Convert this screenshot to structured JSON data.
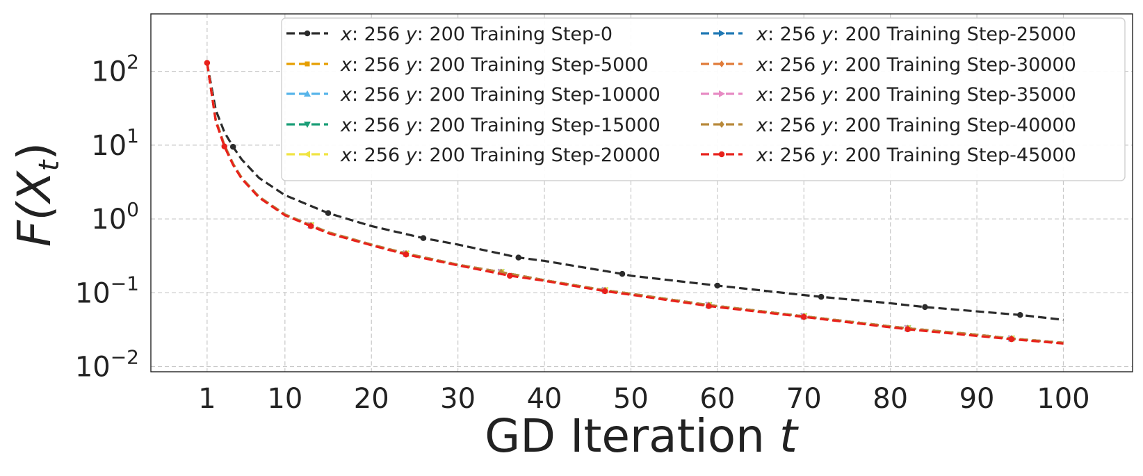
{
  "chart_data": {
    "type": "line",
    "title": "",
    "xlabel": "GD Iteration t",
    "ylabel": "F(X_t)",
    "xlabel_parts": {
      "text": "GD Iteration ",
      "var": "t"
    },
    "ylabel_parts": {
      "f": "F(X",
      "sub": "t",
      "close": ")"
    },
    "xscale": "linear",
    "yscale": "log",
    "xlim": [
      -5.5,
      108
    ],
    "ylim": [
      0.0085,
      600
    ],
    "xticks": [
      1,
      10,
      20,
      30,
      40,
      50,
      60,
      70,
      80,
      90,
      100
    ],
    "xtick_labels": [
      "1",
      "10",
      "20",
      "30",
      "40",
      "50",
      "60",
      "70",
      "80",
      "90",
      "100"
    ],
    "yticks": [
      0.01,
      0.1,
      1,
      10,
      100
    ],
    "ytick_labels": [
      {
        "base": "10",
        "exp": "−2"
      },
      {
        "base": "10",
        "exp": "−1"
      },
      {
        "base": "10",
        "exp": "0"
      },
      {
        "base": "10",
        "exp": "1"
      },
      {
        "base": "10",
        "exp": "2"
      }
    ],
    "grid": true,
    "legend_position": "top-right",
    "legend_columns": 2,
    "legend_label_parts": {
      "x_var": "x",
      "x_val": ": 256 ",
      "y_var": "y",
      "y_val": ": 200 Training Step-"
    },
    "series": [
      {
        "name": "x: 256 y: 200 Training Step-0",
        "step": "0",
        "color": "#2b2b2b",
        "marker": "circle",
        "x": [
          1,
          2,
          3,
          4,
          5,
          7,
          10,
          15,
          20,
          26,
          30,
          37,
          40,
          49,
          50,
          60,
          70,
          72,
          80,
          84,
          90,
          95,
          100
        ],
        "y": [
          130,
          30,
          15,
          9.5,
          6.4,
          3.6,
          2.1,
          1.2,
          0.8,
          0.55,
          0.45,
          0.3,
          0.27,
          0.18,
          0.17,
          0.125,
          0.093,
          0.088,
          0.072,
          0.064,
          0.056,
          0.05,
          0.043
        ],
        "marker_x": [
          4,
          15,
          26,
          37,
          49,
          60,
          72,
          84,
          95
        ]
      },
      {
        "name": "x: 256 y: 200 Training Step-5000",
        "step": "5000",
        "color": "#e69f00",
        "marker": "square",
        "x": [
          1,
          2,
          3,
          4,
          5,
          7,
          10,
          13,
          15,
          20,
          24,
          30,
          35,
          40,
          47,
          50,
          59,
          60,
          70,
          80,
          82,
          90,
          94,
          100
        ],
        "y": [
          130,
          22,
          10,
          5.6,
          3.6,
          2.0,
          1.15,
          0.82,
          0.66,
          0.45,
          0.34,
          0.24,
          0.19,
          0.148,
          0.108,
          0.097,
          0.068,
          0.066,
          0.048,
          0.035,
          0.033,
          0.027,
          0.024,
          0.021
        ],
        "marker_x": [
          13,
          24,
          35,
          47,
          59,
          70,
          82,
          94
        ]
      },
      {
        "name": "x: 256 y: 200 Training Step-10000",
        "step": "10000",
        "color": "#56b4e9",
        "marker": "triangle-up",
        "x": [
          1,
          2,
          3,
          4,
          5,
          7,
          10,
          13,
          15,
          20,
          24,
          30,
          35,
          40,
          47,
          50,
          59,
          60,
          70,
          80,
          82,
          90,
          94,
          100
        ],
        "y": [
          130,
          22,
          10,
          5.6,
          3.6,
          2.0,
          1.15,
          0.82,
          0.66,
          0.45,
          0.34,
          0.24,
          0.19,
          0.148,
          0.108,
          0.097,
          0.068,
          0.066,
          0.048,
          0.035,
          0.033,
          0.027,
          0.024,
          0.021
        ],
        "marker_x": [
          13,
          24,
          35,
          47,
          59,
          70,
          82,
          94
        ]
      },
      {
        "name": "x: 256 y: 200 Training Step-15000",
        "step": "15000",
        "color": "#1a9e77",
        "marker": "triangle-down",
        "x": [
          1,
          2,
          3,
          4,
          5,
          7,
          10,
          13,
          15,
          20,
          24,
          30,
          35,
          40,
          47,
          50,
          59,
          60,
          70,
          80,
          82,
          90,
          94,
          100
        ],
        "y": [
          130,
          22,
          10,
          5.6,
          3.6,
          2.0,
          1.15,
          0.82,
          0.66,
          0.45,
          0.34,
          0.24,
          0.19,
          0.148,
          0.108,
          0.097,
          0.068,
          0.066,
          0.048,
          0.035,
          0.033,
          0.027,
          0.024,
          0.021
        ],
        "marker_x": [
          13,
          24,
          35,
          47,
          59,
          70,
          82,
          94
        ]
      },
      {
        "name": "x: 256 y: 200 Training Step-20000",
        "step": "20000",
        "color": "#f0e442",
        "marker": "triangle-left",
        "x": [
          1,
          2,
          3,
          4,
          5,
          7,
          10,
          13,
          15,
          20,
          24,
          30,
          35,
          40,
          47,
          50,
          59,
          60,
          70,
          80,
          82,
          90,
          94,
          100
        ],
        "y": [
          130,
          22,
          10,
          5.6,
          3.6,
          2.0,
          1.15,
          0.82,
          0.66,
          0.45,
          0.34,
          0.24,
          0.19,
          0.148,
          0.108,
          0.097,
          0.068,
          0.066,
          0.048,
          0.035,
          0.033,
          0.027,
          0.024,
          0.021
        ],
        "marker_x": [
          13,
          24,
          35,
          47,
          59,
          70,
          82,
          94
        ]
      },
      {
        "name": "x: 256 y: 200 Training Step-25000",
        "step": "25000",
        "color": "#1f78b4",
        "marker": "triangle-right",
        "x": [
          1,
          2,
          3,
          4,
          5,
          7,
          10,
          13,
          15,
          20,
          24,
          30,
          35,
          40,
          47,
          50,
          59,
          60,
          70,
          80,
          82,
          90,
          94,
          100
        ],
        "y": [
          130,
          22,
          10,
          5.6,
          3.6,
          2.0,
          1.15,
          0.82,
          0.66,
          0.45,
          0.34,
          0.24,
          0.19,
          0.148,
          0.108,
          0.097,
          0.068,
          0.066,
          0.048,
          0.035,
          0.033,
          0.027,
          0.024,
          0.021
        ],
        "marker_x": [
          13,
          24,
          35,
          47,
          59,
          70,
          82,
          94
        ]
      },
      {
        "name": "x: 256 y: 200 Training Step-30000",
        "step": "30000",
        "color": "#e07b39",
        "marker": "diamond",
        "x": [
          1,
          2,
          3,
          4,
          5,
          7,
          10,
          13,
          15,
          20,
          24,
          30,
          35,
          40,
          47,
          50,
          59,
          60,
          70,
          80,
          82,
          90,
          94,
          100
        ],
        "y": [
          130,
          22,
          10,
          5.6,
          3.6,
          2.0,
          1.15,
          0.82,
          0.66,
          0.45,
          0.34,
          0.24,
          0.19,
          0.148,
          0.108,
          0.097,
          0.068,
          0.066,
          0.048,
          0.035,
          0.033,
          0.027,
          0.024,
          0.021
        ],
        "marker_x": [
          13,
          24,
          35,
          47,
          59,
          70,
          82,
          94
        ]
      },
      {
        "name": "x: 256 y: 200 Training Step-35000",
        "step": "35000",
        "color": "#e78ac3",
        "marker": "triangle-right",
        "x": [
          1,
          2,
          3,
          4,
          5,
          7,
          10,
          13,
          15,
          20,
          24,
          30,
          35,
          40,
          47,
          50,
          59,
          60,
          70,
          80,
          82,
          90,
          94,
          100
        ],
        "y": [
          130,
          22,
          10,
          5.6,
          3.6,
          2.0,
          1.15,
          0.82,
          0.66,
          0.45,
          0.34,
          0.24,
          0.19,
          0.148,
          0.108,
          0.097,
          0.068,
          0.066,
          0.048,
          0.035,
          0.033,
          0.027,
          0.024,
          0.021
        ],
        "marker_x": [
          13,
          24,
          35,
          47,
          59,
          70,
          82,
          94
        ]
      },
      {
        "name": "x: 256 y: 200 Training Step-40000",
        "step": "40000",
        "color": "#b8893a",
        "marker": "diamond",
        "x": [
          1,
          2,
          3,
          4,
          5,
          7,
          10,
          13,
          15,
          20,
          24,
          30,
          35,
          40,
          47,
          50,
          59,
          60,
          70,
          80,
          82,
          90,
          94,
          100
        ],
        "y": [
          130,
          22,
          10,
          5.6,
          3.6,
          2.0,
          1.15,
          0.82,
          0.66,
          0.45,
          0.34,
          0.24,
          0.19,
          0.148,
          0.108,
          0.097,
          0.068,
          0.066,
          0.048,
          0.035,
          0.033,
          0.027,
          0.024,
          0.021
        ],
        "marker_x": [
          13,
          24,
          35,
          47,
          59,
          70,
          82,
          94
        ]
      },
      {
        "name": "x: 256 y: 200 Training Step-45000",
        "step": "45000",
        "color": "#e8211b",
        "marker": "circle",
        "x": [
          1,
          2,
          3,
          4,
          5,
          7,
          10,
          13,
          15,
          20,
          24,
          30,
          36,
          40,
          47,
          50,
          59,
          60,
          70,
          80,
          82,
          90,
          94,
          100
        ],
        "y": [
          130,
          21,
          9.6,
          5.4,
          3.5,
          1.95,
          1.12,
          0.8,
          0.64,
          0.44,
          0.33,
          0.235,
          0.17,
          0.145,
          0.105,
          0.094,
          0.066,
          0.064,
          0.047,
          0.034,
          0.032,
          0.026,
          0.0235,
          0.0205
        ],
        "marker_x": [
          1,
          3,
          13,
          24,
          36,
          47,
          59,
          70,
          82,
          94
        ]
      }
    ]
  }
}
